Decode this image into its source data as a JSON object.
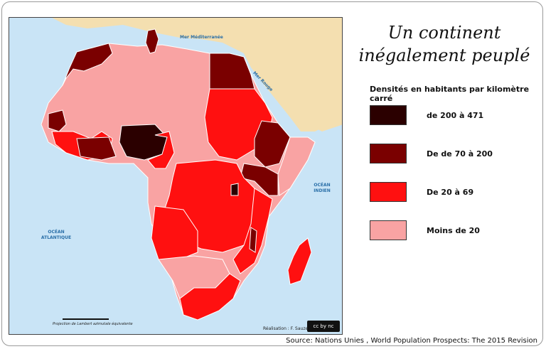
{
  "title": {
    "line1": "Un continent",
    "line2": "inégalement peuplé"
  },
  "legend": {
    "title": "Densités en habitants par kilomètre carré",
    "items": [
      {
        "label": "de 200 à 471",
        "color": "#2b0000"
      },
      {
        "label": "De de 70 à 200",
        "color": "#7a0000"
      },
      {
        "label": "De 20 à 69",
        "color": "#ff1010"
      },
      {
        "label": "Moins de 20",
        "color": "#f9a3a3"
      }
    ]
  },
  "map_labels": {
    "mediterranee": "Mer Méditerranée",
    "mer_rouge": "Mer Rouge",
    "ocean_atlantique": "OCÉAN ATLANTIQUE",
    "ocean_indien": "OCÉAN INDIEN"
  },
  "colors": {
    "sea": "#c9e4f6",
    "non_africa_land": "#f4dfb0",
    "border": "#ffffff"
  },
  "projection": "Projection de Lambert azimutale équivalente",
  "credit": "Réalisation : F. Sauzeau",
  "license": "cc by nc",
  "source": "Source: Nations Unies , World Population Prospects: The 2015 Revision"
}
